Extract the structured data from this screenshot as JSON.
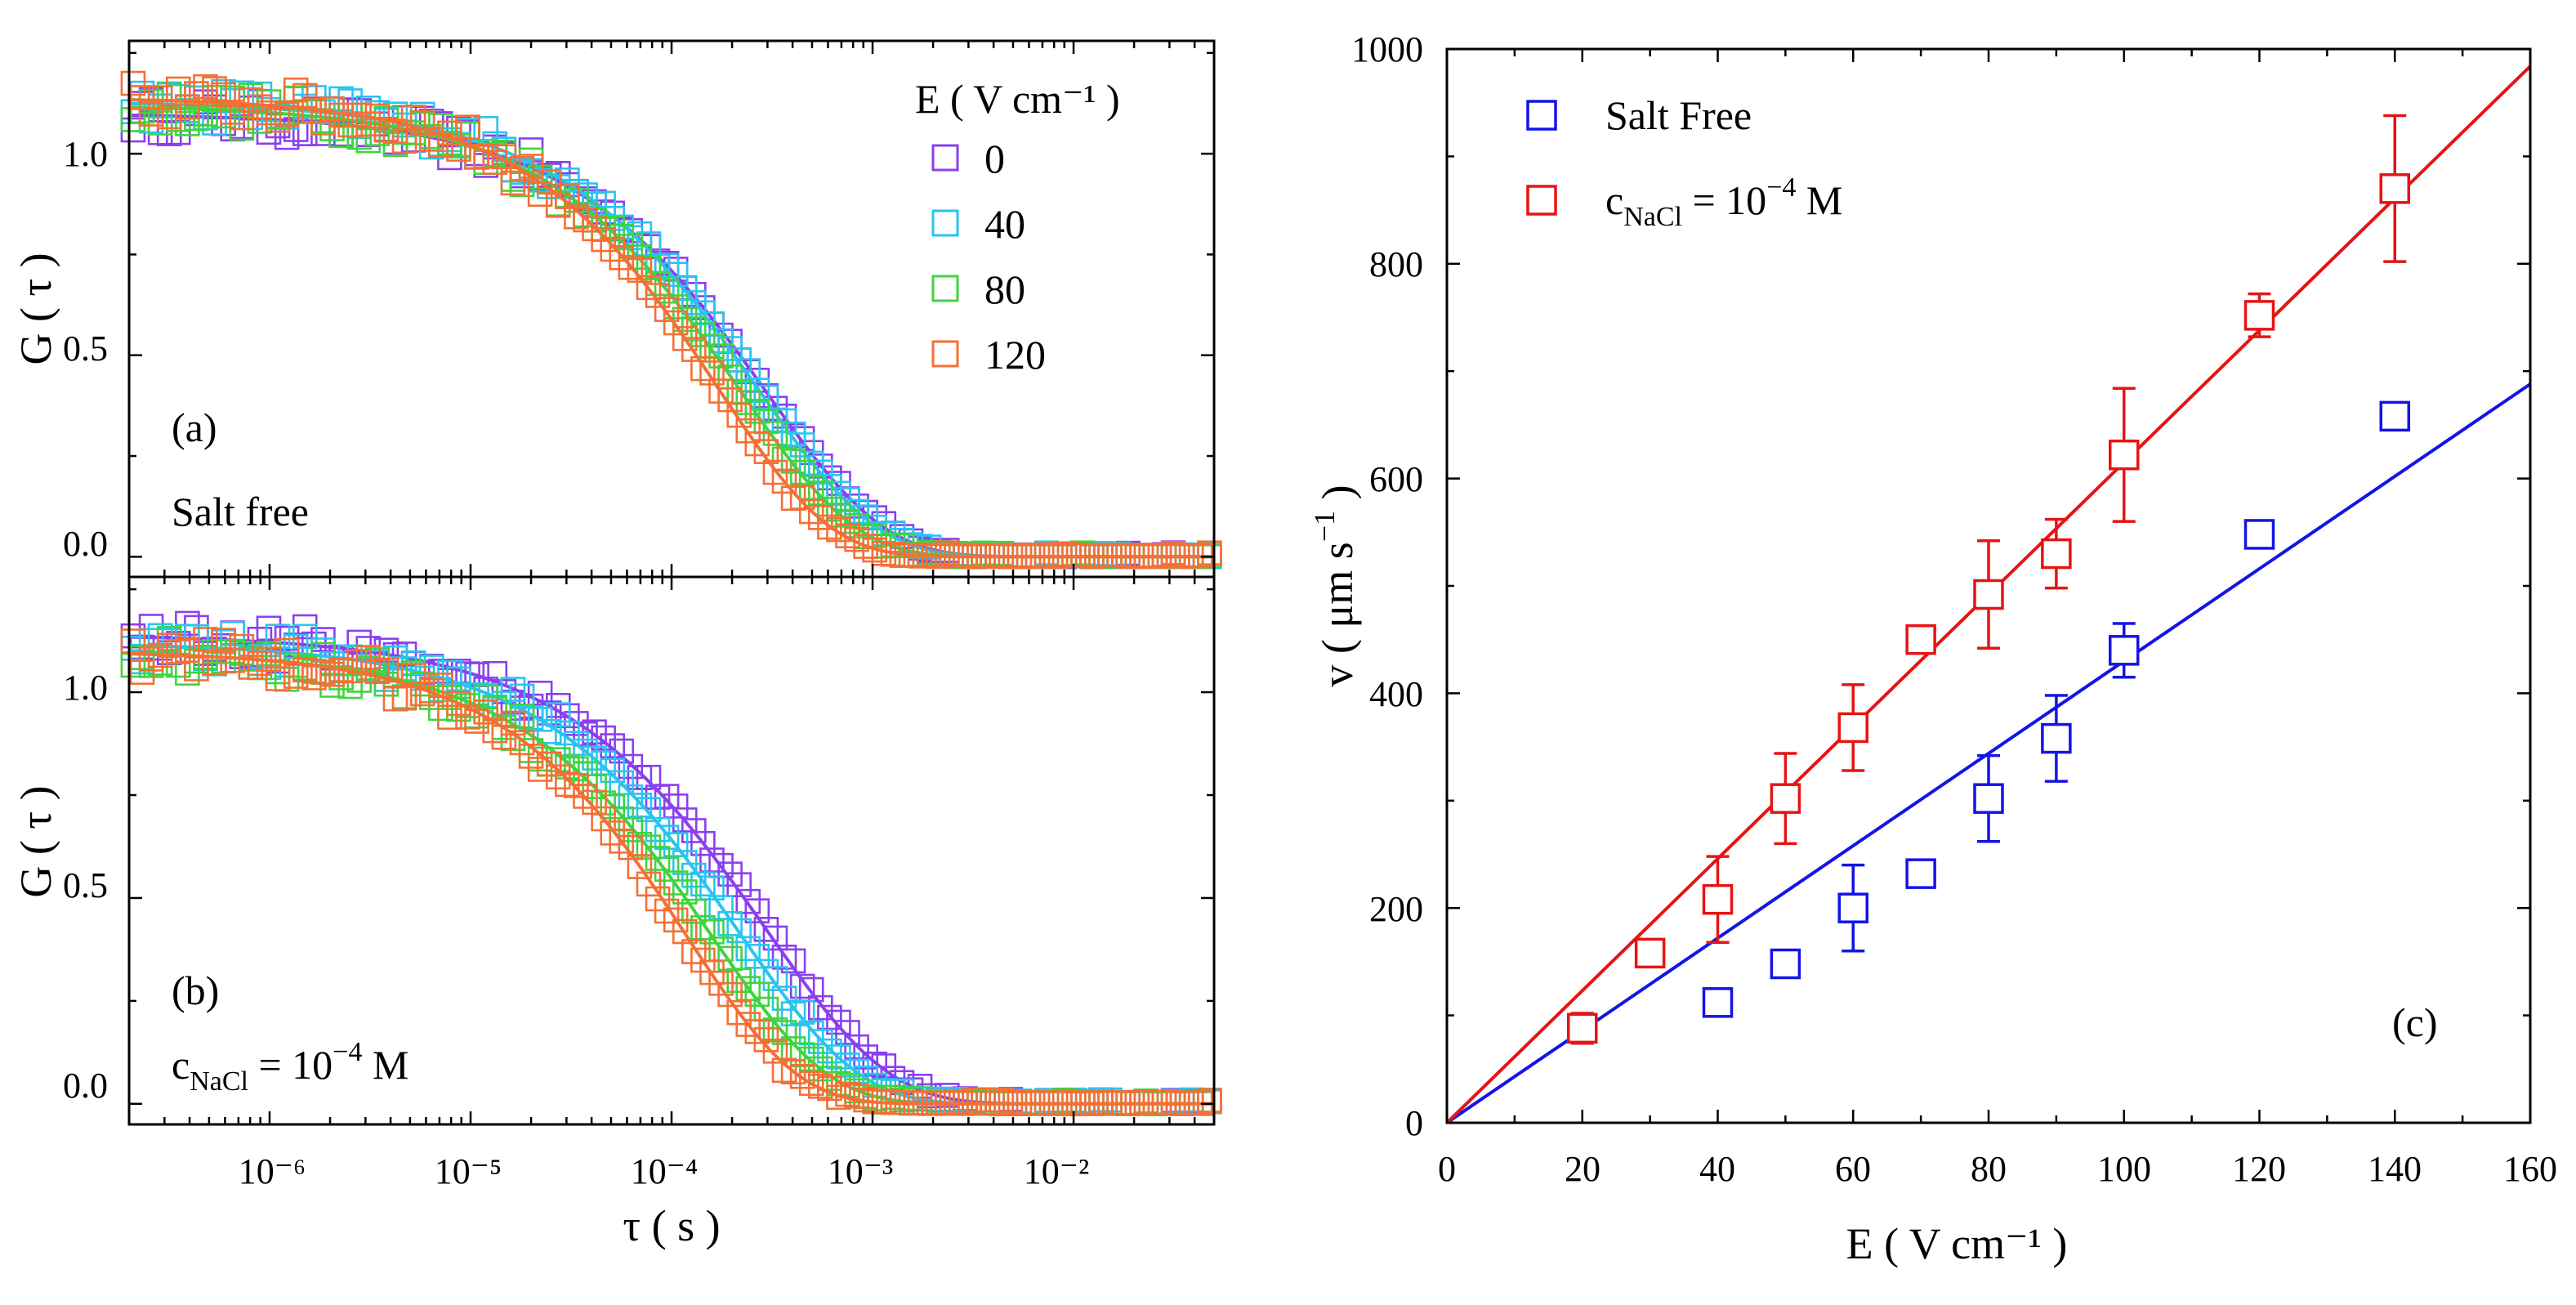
{
  "colors": {
    "E0": "#8a3ff0",
    "E40": "#29c4ef",
    "E80": "#3fd43f",
    "E120": "#f56f35",
    "salt_free": "#1414e6",
    "nacl": "#e61414"
  },
  "chart_data": [
    {
      "panel": "a",
      "type": "scatter",
      "xscale": "log",
      "xlim": [
        2e-07,
        0.05
      ],
      "ylim": [
        -0.05,
        1.28
      ],
      "xlabel": "τ ( s )",
      "ylabel": "G ( τ )",
      "xticklabels": [
        "10⁻⁶",
        "10⁻⁵",
        "10⁻⁴",
        "10⁻³",
        "10⁻²"
      ],
      "yticklabels": [
        "0.0",
        "0.5",
        "1.0"
      ],
      "label": "(a)",
      "annotation": "Salt free",
      "legend_title": "E ( V cm⁻¹ )",
      "legend_position": "top-right",
      "series": [
        {
          "name": "0",
          "color_key": "E0",
          "fit_amplitude": 1.1,
          "fit_tau": 0.0003,
          "fit_beta": 0.75
        },
        {
          "name": "40",
          "color_key": "E40",
          "fit_amplitude": 1.13,
          "fit_tau": 0.00027,
          "fit_beta": 0.74
        },
        {
          "name": "80",
          "color_key": "E80",
          "fit_amplitude": 1.12,
          "fit_tau": 0.00022,
          "fit_beta": 0.76
        },
        {
          "name": "120",
          "color_key": "E120",
          "fit_amplitude": 1.14,
          "fit_tau": 0.00017,
          "fit_beta": 0.78
        }
      ]
    },
    {
      "panel": "b",
      "type": "scatter",
      "xscale": "log",
      "xlim": [
        2e-07,
        0.05
      ],
      "ylim": [
        -0.05,
        1.28
      ],
      "xlabel": "τ ( s )",
      "ylabel": "G ( τ )",
      "xticklabels": [
        "10⁻⁶",
        "10⁻⁵",
        "10⁻⁴",
        "10⁻³",
        "10⁻²"
      ],
      "yticklabels": [
        "0.0",
        "0.5",
        "1.0"
      ],
      "label": "(b)",
      "annotation_base": "c",
      "annotation_sub": "NaCl",
      "annotation_rest": " = 10",
      "annotation_sup": "−4",
      "annotation_tail": " M",
      "series": [
        {
          "name": "0",
          "color_key": "E0",
          "fit_amplitude": 1.14,
          "fit_tau": 0.0003,
          "fit_beta": 0.72
        },
        {
          "name": "40",
          "color_key": "E40",
          "fit_amplitude": 1.12,
          "fit_tau": 0.00022,
          "fit_beta": 0.74
        },
        {
          "name": "80",
          "color_key": "E80",
          "fit_amplitude": 1.1,
          "fit_tau": 0.00016,
          "fit_beta": 0.76
        },
        {
          "name": "120",
          "color_key": "E120",
          "fit_amplitude": 1.1,
          "fit_tau": 0.00012,
          "fit_beta": 0.8
        }
      ]
    },
    {
      "panel": "c",
      "type": "scatter",
      "xlim": [
        0,
        160
      ],
      "ylim": [
        0,
        1000
      ],
      "xlabel": "E ( V cm⁻¹ )",
      "ylabel_main": "v ( μm s",
      "ylabel_sup": "−1",
      "ylabel_close": " )",
      "xticklabels": [
        "0",
        "20",
        "40",
        "60",
        "80",
        "100",
        "120",
        "140",
        "160"
      ],
      "yticklabels": [
        "0",
        "200",
        "400",
        "600",
        "800",
        "1000"
      ],
      "label": "(c)",
      "legend_position": "top-left",
      "series": [
        {
          "name": "Salt Free",
          "color_key": "salt_free",
          "x": [
            20,
            40,
            50,
            60,
            70,
            80,
            90,
            100,
            120,
            140
          ],
          "y": [
            88,
            112,
            148,
            200,
            232,
            302,
            358,
            440,
            548,
            658
          ],
          "err": [
            12,
            10,
            12,
            40,
            10,
            40,
            40,
            25,
            8,
            12
          ],
          "fit_slope": 4.3
        },
        {
          "name_base": "c",
          "name_sub": "NaCl",
          "name_rest": " = 10",
          "name_sup": "−4",
          "name_tail": " M",
          "color_key": "nacl",
          "x": [
            20,
            30,
            40,
            50,
            60,
            70,
            80,
            90,
            100,
            120,
            140
          ],
          "y": [
            88,
            158,
            208,
            302,
            368,
            450,
            492,
            530,
            622,
            752,
            870
          ],
          "err": [
            14,
            10,
            40,
            42,
            40,
            12,
            50,
            32,
            62,
            20,
            68
          ],
          "fit_slope": 6.15
        }
      ]
    }
  ]
}
